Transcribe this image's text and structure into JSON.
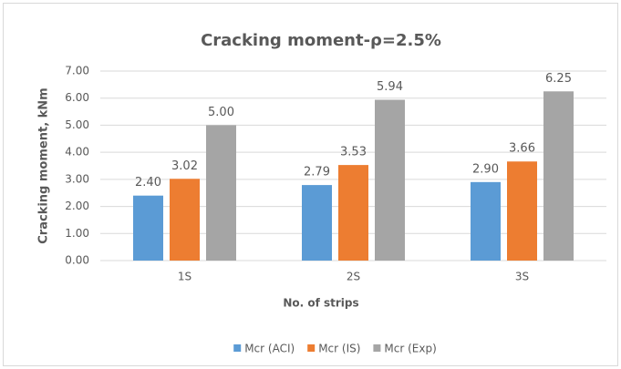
{
  "chart_data": {
    "type": "bar",
    "title": "Cracking moment-ρ=2.5%",
    "x_label": "No. of strips",
    "y_label": "Cracking moment, kNm",
    "categories": [
      "1S",
      "2S",
      "3S"
    ],
    "series": [
      {
        "name": "Mcr (ACI)",
        "color": "#5b9bd5",
        "values": [
          2.4,
          2.79,
          2.9
        ],
        "value_labels": [
          "2.40",
          "2.79",
          "2.90"
        ]
      },
      {
        "name": "Mcr (IS)",
        "color": "#ed7d31",
        "values": [
          3.02,
          3.53,
          3.66
        ],
        "value_labels": [
          "3.02",
          "3.53",
          "3.66"
        ]
      },
      {
        "name": "Mcr (Exp)",
        "color": "#a5a5a5",
        "values": [
          5,
          5.94,
          6.25
        ],
        "value_labels": [
          "5.00",
          "5.94",
          "6.25"
        ]
      }
    ],
    "ylim": [
      0,
      7
    ],
    "yticks": [
      {
        "value": 0,
        "label": "0.00"
      },
      {
        "value": 1,
        "label": "1.00"
      },
      {
        "value": 2,
        "label": "2.00"
      },
      {
        "value": 3,
        "label": "3.00"
      },
      {
        "value": 4,
        "label": "4.00"
      },
      {
        "value": 5,
        "label": "5.00"
      },
      {
        "value": 6,
        "label": "6.00"
      },
      {
        "value": 7,
        "label": "7.00"
      }
    ],
    "grid": true,
    "legend": "bottom"
  }
}
